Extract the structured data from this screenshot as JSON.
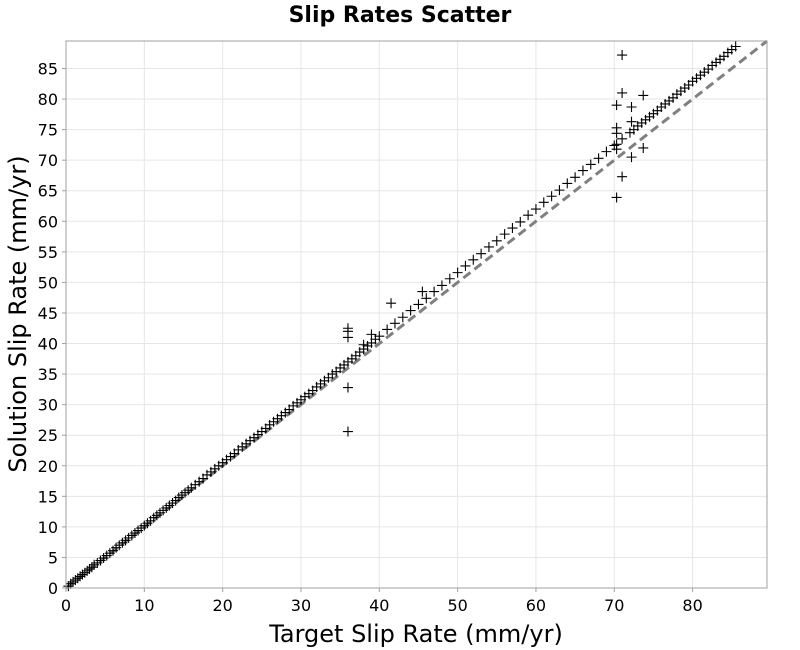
{
  "chart_data": {
    "type": "scatter",
    "title": "Slip Rates Scatter",
    "xlabel": "Target Slip Rate (mm/yr)",
    "ylabel": "Solution Slip Rate (mm/yr)",
    "xlim": [
      0,
      89.5
    ],
    "ylim": [
      0,
      89.5
    ],
    "xticks": [
      0,
      10,
      20,
      30,
      40,
      50,
      60,
      70,
      80
    ],
    "yticks": [
      0,
      5,
      10,
      15,
      20,
      25,
      30,
      35,
      40,
      45,
      50,
      55,
      60,
      65,
      70,
      75,
      80,
      85
    ],
    "grid": true,
    "marker": "+",
    "marker_color": "#000000",
    "reference_line": {
      "style": "dashed",
      "color": "#808080",
      "x": [
        0,
        89.5
      ],
      "y": [
        0,
        89.5
      ]
    },
    "series": [
      {
        "points": [
          [
            0.3,
            0.3
          ],
          [
            0.6,
            0.7
          ],
          [
            0.9,
            1.0
          ],
          [
            1.2,
            1.3
          ],
          [
            1.5,
            1.6
          ],
          [
            1.8,
            1.9
          ],
          [
            2.1,
            2.2
          ],
          [
            2.4,
            2.5
          ],
          [
            2.7,
            2.8
          ],
          [
            3.0,
            3.1
          ],
          [
            3.3,
            3.4
          ],
          [
            3.6,
            3.8
          ],
          [
            4.0,
            4.1
          ],
          [
            4.4,
            4.5
          ],
          [
            4.8,
            4.9
          ],
          [
            5.2,
            5.3
          ],
          [
            5.6,
            5.7
          ],
          [
            6.0,
            6.1
          ],
          [
            6.4,
            6.6
          ],
          [
            6.8,
            7.0
          ],
          [
            7.2,
            7.4
          ],
          [
            7.6,
            7.8
          ],
          [
            8.0,
            8.2
          ],
          [
            8.4,
            8.6
          ],
          [
            8.8,
            9.0
          ],
          [
            9.2,
            9.4
          ],
          [
            9.6,
            9.8
          ],
          [
            10.0,
            10.2
          ],
          [
            10.4,
            10.6
          ],
          [
            10.8,
            11.0
          ],
          [
            11.2,
            11.5
          ],
          [
            11.6,
            11.9
          ],
          [
            12.0,
            12.3
          ],
          [
            12.4,
            12.7
          ],
          [
            12.8,
            13.1
          ],
          [
            13.2,
            13.5
          ],
          [
            13.6,
            13.9
          ],
          [
            14.0,
            14.3
          ],
          [
            14.4,
            14.8
          ],
          [
            14.8,
            15.2
          ],
          [
            15.2,
            15.6
          ],
          [
            15.6,
            16.0
          ],
          [
            16.0,
            16.4
          ],
          [
            16.5,
            16.9
          ],
          [
            17.0,
            17.4
          ],
          [
            17.5,
            17.9
          ],
          [
            18.0,
            18.5
          ],
          [
            18.5,
            19.0
          ],
          [
            19.0,
            19.5
          ],
          [
            19.5,
            20.0
          ],
          [
            20.0,
            20.5
          ],
          [
            20.5,
            21.0
          ],
          [
            21.0,
            21.5
          ],
          [
            21.5,
            22.0
          ],
          [
            22.0,
            22.6
          ],
          [
            22.5,
            23.1
          ],
          [
            23.0,
            23.6
          ],
          [
            23.5,
            24.1
          ],
          [
            24.0,
            24.6
          ],
          [
            24.5,
            25.1
          ],
          [
            25.0,
            25.6
          ],
          [
            25.5,
            26.1
          ],
          [
            26.0,
            26.7
          ],
          [
            26.5,
            27.2
          ],
          [
            27.0,
            27.7
          ],
          [
            27.5,
            28.2
          ],
          [
            28.0,
            28.7
          ],
          [
            28.5,
            29.2
          ],
          [
            29.0,
            29.8
          ],
          [
            29.5,
            30.3
          ],
          [
            30.0,
            30.8
          ],
          [
            30.5,
            31.3
          ],
          [
            31.0,
            31.8
          ],
          [
            31.5,
            32.3
          ],
          [
            32.0,
            32.9
          ],
          [
            32.5,
            33.4
          ],
          [
            33.0,
            33.9
          ],
          [
            33.5,
            34.4
          ],
          [
            34.0,
            35.0
          ],
          [
            34.5,
            35.4
          ],
          [
            35.0,
            36.0
          ],
          [
            35.5,
            36.5
          ],
          [
            36.0,
            37.0
          ],
          [
            36.5,
            37.5
          ],
          [
            37.0,
            38.0
          ],
          [
            37.5,
            38.6
          ],
          [
            38.0,
            39.1
          ],
          [
            38.5,
            39.6
          ],
          [
            39.0,
            40.1
          ],
          [
            39.5,
            40.7
          ],
          [
            40.0,
            41.2
          ],
          [
            41.0,
            42.3
          ],
          [
            42.0,
            43.3
          ],
          [
            43.0,
            44.3
          ],
          [
            44.0,
            45.4
          ],
          [
            45.0,
            46.4
          ],
          [
            46.0,
            47.4
          ],
          [
            47.0,
            48.5
          ],
          [
            48.0,
            49.5
          ],
          [
            49.0,
            50.6
          ],
          [
            50.0,
            51.6
          ],
          [
            51.0,
            52.7
          ],
          [
            52.0,
            53.7
          ],
          [
            53.0,
            54.7
          ],
          [
            54.0,
            55.8
          ],
          [
            55.0,
            56.8
          ],
          [
            56.0,
            57.9
          ],
          [
            57.0,
            58.9
          ],
          [
            58.0,
            59.9
          ],
          [
            59.0,
            61.0
          ],
          [
            60.0,
            62.0
          ],
          [
            61.0,
            63.1
          ],
          [
            62.0,
            64.1
          ],
          [
            63.0,
            65.1
          ],
          [
            64.0,
            66.2
          ],
          [
            65.0,
            67.2
          ],
          [
            66.0,
            68.3
          ],
          [
            67.0,
            69.3
          ],
          [
            68.0,
            70.3
          ],
          [
            69.0,
            71.4
          ],
          [
            70.0,
            72.4
          ],
          [
            71.0,
            73.5
          ],
          [
            72.0,
            74.5
          ],
          [
            72.5,
            75.0
          ],
          [
            73.0,
            75.6
          ],
          [
            73.5,
            76.1
          ],
          [
            74.0,
            76.6
          ],
          [
            74.5,
            77.1
          ],
          [
            75.0,
            77.6
          ],
          [
            75.5,
            78.1
          ],
          [
            76.0,
            78.7
          ],
          [
            76.5,
            79.2
          ],
          [
            77.0,
            79.7
          ],
          [
            77.5,
            80.2
          ],
          [
            78.0,
            80.8
          ],
          [
            78.5,
            81.3
          ],
          [
            79.0,
            81.8
          ],
          [
            79.5,
            82.3
          ],
          [
            80.0,
            82.9
          ],
          [
            80.5,
            83.4
          ],
          [
            81.0,
            83.9
          ],
          [
            81.5,
            84.4
          ],
          [
            82.0,
            84.9
          ],
          [
            82.5,
            85.5
          ],
          [
            83.0,
            86.0
          ],
          [
            83.5,
            86.5
          ],
          [
            84.0,
            87.0
          ],
          [
            84.5,
            87.6
          ],
          [
            85.0,
            88.1
          ],
          [
            85.5,
            88.6
          ],
          [
            36.0,
            25.6
          ],
          [
            36.0,
            32.8
          ],
          [
            36.0,
            41.0
          ],
          [
            36.0,
            42.0
          ],
          [
            36.0,
            42.5
          ],
          [
            38.0,
            39.8
          ],
          [
            39.0,
            41.5
          ],
          [
            41.5,
            46.6
          ],
          [
            45.5,
            48.5
          ],
          [
            70.3,
            63.9
          ],
          [
            70.3,
            71.8
          ],
          [
            70.3,
            72.6
          ],
          [
            70.3,
            74.4
          ],
          [
            70.3,
            75.3
          ],
          [
            70.3,
            79.0
          ],
          [
            71.0,
            67.3
          ],
          [
            71.0,
            81.0
          ],
          [
            71.0,
            87.2
          ],
          [
            72.2,
            70.5
          ],
          [
            72.2,
            76.3
          ],
          [
            72.2,
            78.7
          ],
          [
            73.7,
            72.0
          ],
          [
            73.7,
            80.6
          ]
        ]
      }
    ]
  }
}
